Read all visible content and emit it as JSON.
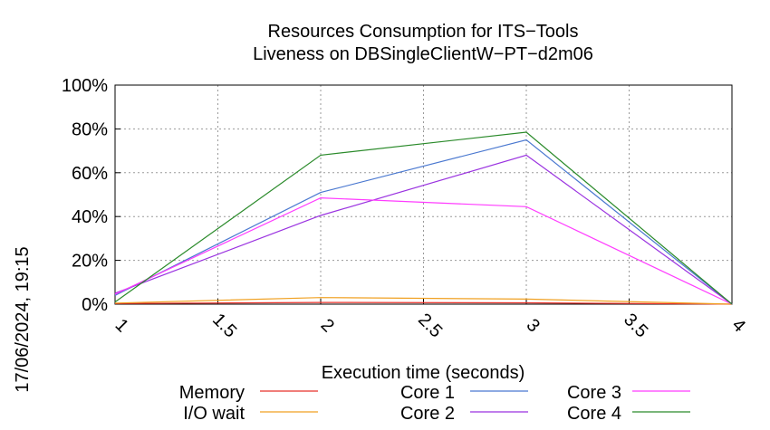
{
  "timestamp": "17/06/2024, 19:15",
  "chart_data": {
    "type": "line",
    "title_line1": "Resources Consumption for ITS−Tools",
    "title_line2": "Liveness on DBSingleClientW−PT−d2m06",
    "xlabel": "Execution time (seconds)",
    "ylabel": "",
    "xlim": [
      1,
      4
    ],
    "ylim": [
      0,
      100
    ],
    "x_ticks": [
      "1",
      "1.5",
      "2",
      "2.5",
      "3",
      "3.5",
      "4"
    ],
    "y_ticks": [
      "0%",
      "20%",
      "40%",
      "60%",
      "80%",
      "100%"
    ],
    "grid": true,
    "legend_position": "bottom",
    "x": [
      1,
      2,
      3,
      4
    ],
    "series": [
      {
        "name": "Memory",
        "color": "#e8322a",
        "values": [
          0.3,
          0.8,
          0.6,
          0
        ]
      },
      {
        "name": "I/O wait",
        "color": "#f0a020",
        "values": [
          0.5,
          3,
          2.3,
          0
        ]
      },
      {
        "name": "Core 1",
        "color": "#4a78d0",
        "values": [
          4,
          51,
          75,
          0
        ]
      },
      {
        "name": "Core 2",
        "color": "#9a32e0",
        "values": [
          5,
          40.5,
          68,
          0
        ]
      },
      {
        "name": "Core 3",
        "color": "#ff3cff",
        "values": [
          4.5,
          48.5,
          44.5,
          0
        ]
      },
      {
        "name": "Core 4",
        "color": "#2a8a2a",
        "values": [
          1,
          68,
          78.5,
          0
        ]
      }
    ]
  }
}
